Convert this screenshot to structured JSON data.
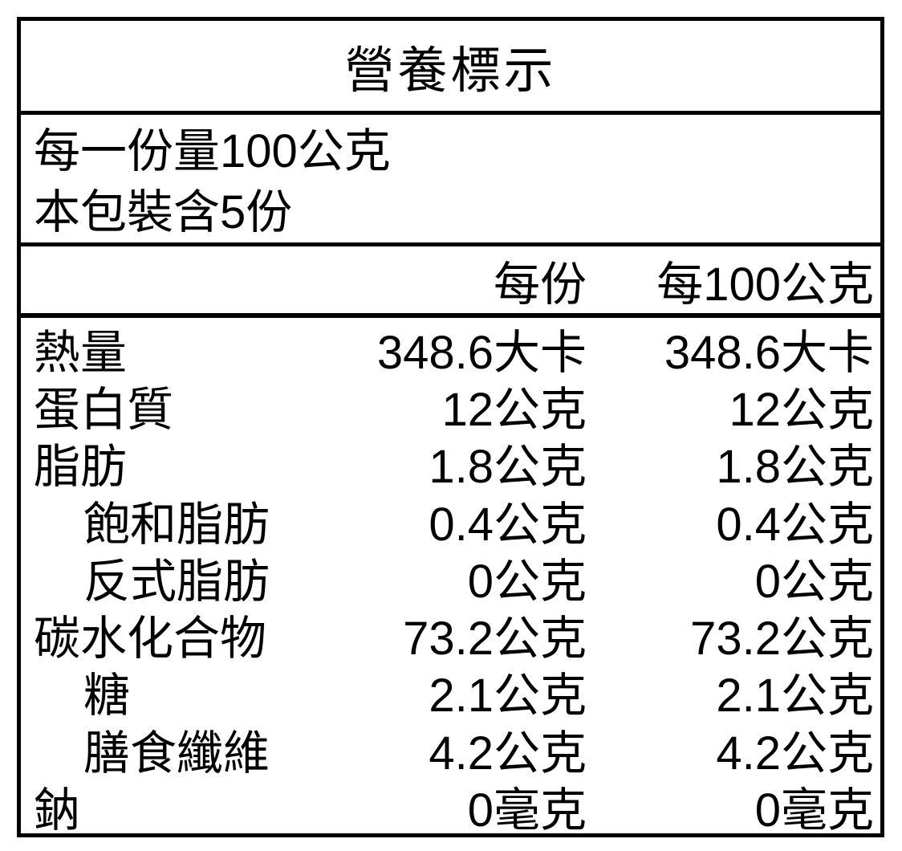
{
  "label": {
    "title": "營養標示",
    "serving_info": {
      "serving_size": "每一份量100公克",
      "servings_per_package": "本包裝含5份"
    },
    "columns": {
      "per_serving": "每份",
      "per_100g": "每100公克"
    },
    "rows": [
      {
        "name": "熱量",
        "per_serving": "348.6大卡",
        "per_100g": "348.6大卡",
        "indent": false
      },
      {
        "name": "蛋白質",
        "per_serving": "12公克",
        "per_100g": "12公克",
        "indent": false
      },
      {
        "name": "脂肪",
        "per_serving": "1.8公克",
        "per_100g": "1.8公克",
        "indent": false
      },
      {
        "name": "飽和脂肪",
        "per_serving": "0.4公克",
        "per_100g": "0.4公克",
        "indent": true
      },
      {
        "name": "反式脂肪",
        "per_serving": "0公克",
        "per_100g": "0公克",
        "indent": true
      },
      {
        "name": "碳水化合物",
        "per_serving": "73.2公克",
        "per_100g": "73.2公克",
        "indent": false
      },
      {
        "name": "糖",
        "per_serving": "2.1公克",
        "per_100g": "2.1公克",
        "indent": true
      },
      {
        "name": "膳食纖維",
        "per_serving": "4.2公克",
        "per_100g": "4.2公克",
        "indent": true
      },
      {
        "name": "鈉",
        "per_serving": "0毫克",
        "per_100g": "0毫克",
        "indent": false
      }
    ]
  },
  "colors": {
    "border": "#000000",
    "background": "#ffffff",
    "text": "#000000"
  }
}
